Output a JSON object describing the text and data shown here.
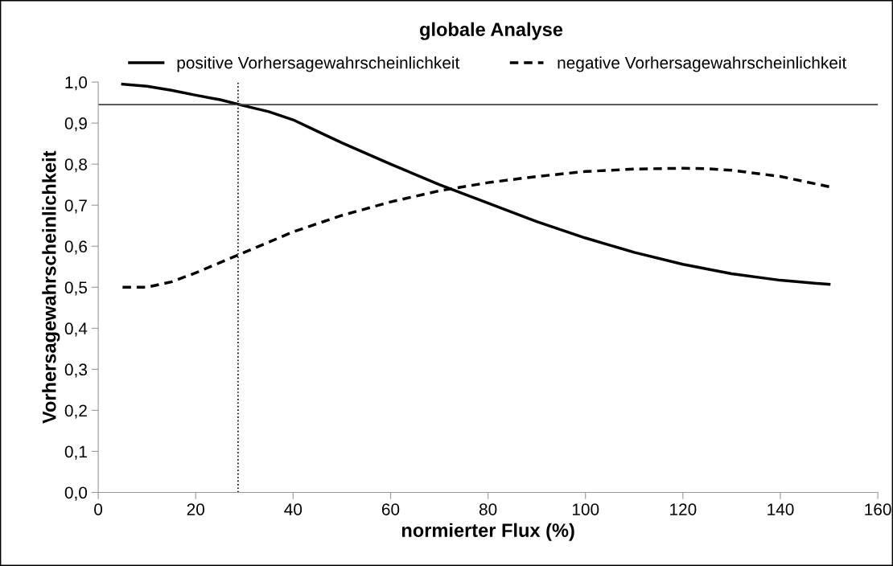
{
  "chart_data": {
    "type": "line",
    "title": "globale Analyse",
    "xlabel": "normierter Flux (%)",
    "ylabel": "Vorhersagewahrscheinlichkeit",
    "legend": "top",
    "grid": false,
    "marker": "none",
    "xlim": [
      0,
      160
    ],
    "xticks": [
      0,
      20,
      40,
      60,
      80,
      100,
      120,
      140,
      160
    ],
    "ylim": [
      0,
      1.0
    ],
    "yticks": [
      {
        "value": 0,
        "label": "0,0"
      },
      {
        "value": 0.1,
        "label": "0,1"
      },
      {
        "value": 0.2,
        "label": "0,2"
      },
      {
        "value": 0.3,
        "label": "0,3"
      },
      {
        "value": 0.4,
        "label": "0,4"
      },
      {
        "value": 0.5,
        "label": "0,5"
      },
      {
        "value": 0.6,
        "label": "0,6"
      },
      {
        "value": 0.7,
        "label": "0,7"
      },
      {
        "value": 0.8,
        "label": "0,8"
      },
      {
        "value": 0.9,
        "label": "0,9"
      },
      {
        "value": 1.0,
        "label": "1,0"
      }
    ],
    "series": [
      {
        "name": "positive Vorhersagewahrscheinlichkeit",
        "color": "#000000",
        "line_style": "solid",
        "x": [
          5,
          10,
          15,
          20,
          25,
          30,
          35,
          40,
          45,
          50,
          60,
          70,
          80,
          90,
          100,
          110,
          120,
          130,
          140,
          150
        ],
        "values": [
          0.995,
          0.99,
          0.98,
          0.968,
          0.957,
          0.942,
          0.928,
          0.908,
          0.88,
          0.852,
          0.8,
          0.75,
          0.705,
          0.66,
          0.62,
          0.585,
          0.556,
          0.533,
          0.517,
          0.507
        ]
      },
      {
        "name": "negative Vorhersagewahrscheinlichkeit",
        "color": "#000000",
        "line_style": "dashed",
        "x": [
          5,
          10,
          15,
          20,
          25,
          30,
          40,
          50,
          60,
          70,
          80,
          90,
          100,
          110,
          120,
          125,
          130,
          140,
          150
        ],
        "values": [
          0.5,
          0.5,
          0.513,
          0.535,
          0.56,
          0.585,
          0.635,
          0.675,
          0.708,
          0.735,
          0.755,
          0.77,
          0.782,
          0.788,
          0.79,
          0.789,
          0.785,
          0.77,
          0.745
        ]
      }
    ],
    "ref_lines": [
      {
        "axis": "y",
        "value": 0.945,
        "color": "#444444",
        "line_style": "solid"
      },
      {
        "axis": "x",
        "value": 28.7,
        "color": "#000000",
        "line_style": "dotted"
      }
    ]
  }
}
